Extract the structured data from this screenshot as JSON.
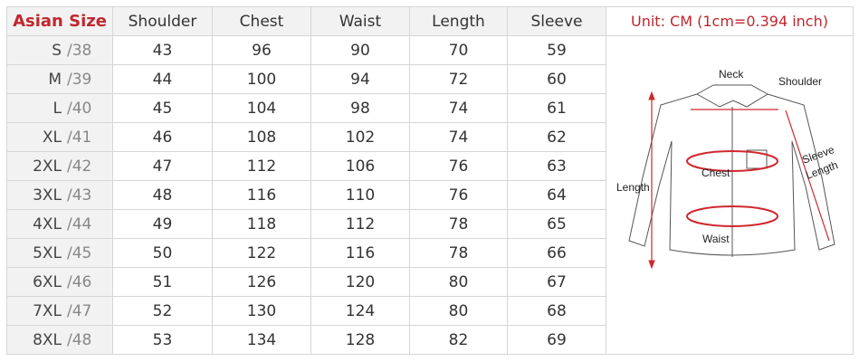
{
  "table": {
    "headers": [
      "Asian Size",
      "Shoulder",
      "Chest",
      "Waist",
      "Length",
      "Sleeve"
    ],
    "unit_note": "Unit: CM (1cm=0.394 inch)",
    "rows": [
      {
        "size": "S",
        "eu": "/38",
        "values": [
          43,
          96,
          90,
          70,
          59
        ]
      },
      {
        "size": "M",
        "eu": "/39",
        "values": [
          44,
          100,
          94,
          72,
          60
        ]
      },
      {
        "size": "L",
        "eu": "/40",
        "values": [
          45,
          104,
          98,
          74,
          61
        ]
      },
      {
        "size": "XL",
        "eu": "/41",
        "values": [
          46,
          108,
          102,
          74,
          62
        ]
      },
      {
        "size": "2XL",
        "eu": "/42",
        "values": [
          47,
          112,
          106,
          76,
          63
        ]
      },
      {
        "size": "3XL",
        "eu": "/43",
        "values": [
          48,
          116,
          110,
          76,
          64
        ]
      },
      {
        "size": "4XL",
        "eu": "/44",
        "values": [
          49,
          118,
          112,
          78,
          65
        ]
      },
      {
        "size": "5XL",
        "eu": "/45",
        "values": [
          50,
          122,
          116,
          78,
          66
        ]
      },
      {
        "size": "6XL",
        "eu": "/46",
        "values": [
          51,
          126,
          120,
          80,
          67
        ]
      },
      {
        "size": "7XL",
        "eu": "/47",
        "values": [
          52,
          130,
          124,
          80,
          68
        ]
      },
      {
        "size": "8XL",
        "eu": "/48",
        "values": [
          53,
          134,
          128,
          82,
          69
        ]
      }
    ]
  },
  "diagram": {
    "labels": {
      "neck": "Neck",
      "shoulder": "Shoulder",
      "chest": "Chest",
      "waist": "Waist",
      "length": "Length",
      "sleeve_1": "Sleeve",
      "sleeve_2": "Length"
    },
    "accent_color": "#d0282e"
  }
}
